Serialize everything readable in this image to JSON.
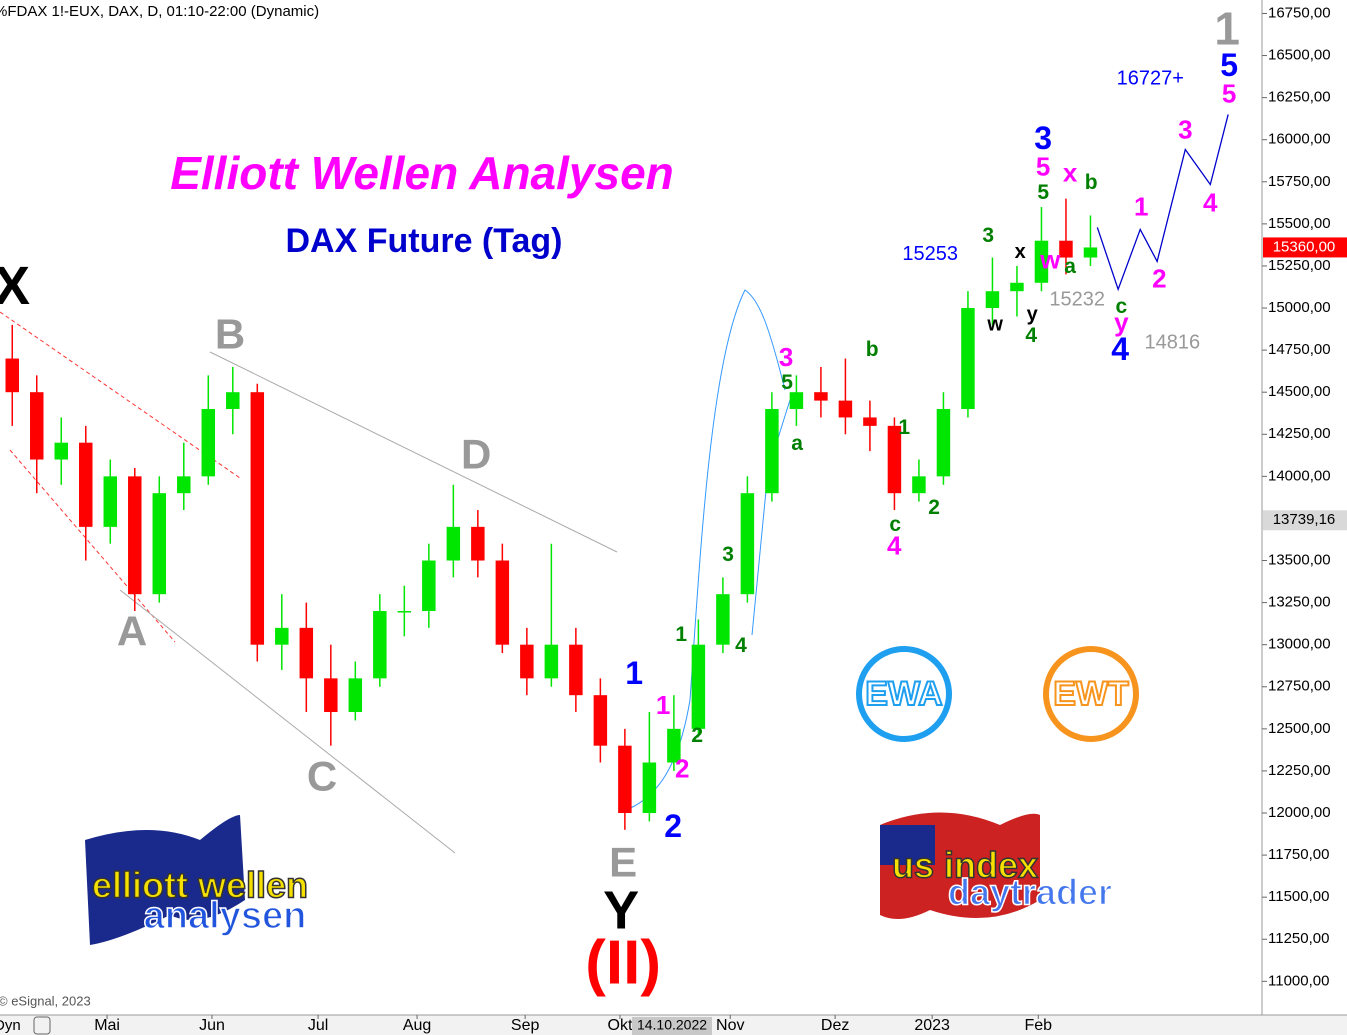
{
  "header": "%FDAX 1!-EUX, DAX, D, 01:10-22:00 (Dynamic)",
  "copyright": "© eSignal, 2023",
  "footer_left": "Dyn",
  "date_box": "14.10.2022",
  "logos": {
    "ewa": "EWA",
    "ewt": "EWT",
    "ew_line1": "elliott wellen",
    "ew_line2": "analysen",
    "us_line1": "us index",
    "us_line2": "daytrader"
  },
  "chart_data": {
    "type": "candlestick",
    "title": "Elliott Wellen Analysen",
    "subtitle": "DAX Future (Tag)",
    "up_color": "#00e600",
    "down_color": "#ff0000",
    "open": [
      14700,
      14500,
      14100,
      14200,
      13700,
      14000,
      13300,
      13900,
      14000,
      14400,
      14500,
      13000,
      13100,
      12800,
      12600,
      12800,
      13200,
      13200,
      13500,
      13700,
      13500,
      13000,
      12800,
      13000,
      12700,
      12400,
      12000,
      12300,
      12500,
      13000,
      13300,
      13900,
      14400,
      14500,
      14450,
      14350,
      14300,
      13900,
      14000,
      14400,
      15000,
      15100,
      15150,
      15400,
      15300
    ],
    "high": [
      14900,
      14600,
      14350,
      14300,
      14100,
      14050,
      14000,
      14200,
      14600,
      14650,
      14550,
      13300,
      13250,
      13000,
      12900,
      13300,
      13350,
      13600,
      13950,
      13800,
      13600,
      13100,
      13600,
      13100,
      12800,
      12500,
      12600,
      12700,
      13150,
      13400,
      14000,
      14500,
      14600,
      14650,
      14700,
      14450,
      14350,
      14100,
      14500,
      15100,
      15300,
      15250,
      15600,
      15650,
      15550
    ],
    "low": [
      14300,
      13900,
      13950,
      13500,
      13600,
      13200,
      13250,
      13800,
      13950,
      14250,
      12900,
      12850,
      12600,
      12400,
      12550,
      12750,
      13050,
      13100,
      13400,
      13400,
      12950,
      12700,
      12750,
      12600,
      12300,
      11900,
      11950,
      12250,
      12450,
      12950,
      13250,
      13850,
      14300,
      14350,
      14250,
      14150,
      13800,
      13850,
      13950,
      14350,
      14900,
      14950,
      15100,
      15200,
      15250
    ],
    "close": [
      14500,
      14100,
      14200,
      13700,
      14000,
      13300,
      13900,
      14000,
      14400,
      14500,
      13000,
      13100,
      12800,
      12600,
      12800,
      13200,
      13200,
      13500,
      13700,
      13500,
      13000,
      12800,
      13000,
      12700,
      12400,
      12000,
      12300,
      12500,
      13000,
      13300,
      13900,
      14400,
      14500,
      14450,
      14350,
      14300,
      13900,
      14000,
      14400,
      15000,
      15100,
      15150,
      15400,
      15300,
      15360
    ],
    "xlim": [
      0,
      51.5
    ],
    "ylim": [
      10800,
      16830
    ],
    "xticks": [
      {
        "value": 4.37,
        "label": "Mai"
      },
      {
        "value": 8.65,
        "label": "Jun"
      },
      {
        "value": 12.98,
        "label": "Jul"
      },
      {
        "value": 17.02,
        "label": "Aug"
      },
      {
        "value": 21.43,
        "label": "Sep"
      },
      {
        "value": 25.3,
        "label": "Okt"
      },
      {
        "value": 29.8,
        "label": "Nov"
      },
      {
        "value": 34.08,
        "label": "Dez"
      },
      {
        "value": 38.04,
        "label": "2023"
      },
      {
        "value": 42.37,
        "label": "Feb"
      }
    ],
    "yticks": [
      {
        "value": 16750,
        "label": "16750,00"
      },
      {
        "value": 16500,
        "label": "16500,00"
      },
      {
        "value": 16250,
        "label": "16250,00"
      },
      {
        "value": 16000,
        "label": "16000,00"
      },
      {
        "value": 15750,
        "label": "15750,00"
      },
      {
        "value": 15500,
        "label": "15500,00"
      },
      {
        "value": 15250,
        "label": "15250,00"
      },
      {
        "value": 15000,
        "label": "15000,00"
      },
      {
        "value": 14750,
        "label": "14750,00"
      },
      {
        "value": 14500,
        "label": "14500,00"
      },
      {
        "value": 14250,
        "label": "14250,00"
      },
      {
        "value": 14000,
        "label": "14000,00"
      },
      {
        "value": 13500,
        "label": "13500,00"
      },
      {
        "value": 13250,
        "label": "13250,00"
      },
      {
        "value": 13000,
        "label": "13000,00"
      },
      {
        "value": 12750,
        "label": "12750,00"
      },
      {
        "value": 12500,
        "label": "12500,00"
      },
      {
        "value": 12250,
        "label": "12250,00"
      },
      {
        "value": 12000,
        "label": "12000,00"
      },
      {
        "value": 11750,
        "label": "11750,00"
      },
      {
        "value": 11500,
        "label": "11500,00"
      },
      {
        "value": 11250,
        "label": "11250,00"
      },
      {
        "value": 11000,
        "label": "11000,00"
      }
    ],
    "last_price": {
      "value": 15360,
      "label": "15360,00",
      "color": "#ff0000"
    },
    "marker_price": {
      "value": 13739.16,
      "label": "13739,16",
      "color": "#d9d9d9"
    },
    "projection": {
      "x": [
        44.78,
        45.63,
        46.53,
        47.22,
        48.37,
        49.39,
        50.12
      ],
      "y": [
        15479,
        15111,
        15467,
        15277,
        15942,
        15734,
        16150
      ],
      "color": "#0000cc"
    },
    "annotations": [
      {
        "text": "X",
        "x": 0.49,
        "y": 15110,
        "color": "#000000"
      },
      {
        "text": "B",
        "x": 9.39,
        "y": 14825,
        "color": "#999999"
      },
      {
        "text": "A",
        "x": 5.39,
        "y": 13061,
        "color": "#999999"
      },
      {
        "text": "C",
        "x": 13.14,
        "y": 12200,
        "color": "#999999"
      },
      {
        "text": "D",
        "x": 19.43,
        "y": 14113,
        "color": "#999999"
      },
      {
        "text": "E",
        "x": 25.43,
        "y": 11689,
        "color": "#999999"
      },
      {
        "text": "Y",
        "x": 25.35,
        "y": 11398,
        "color": "#000000"
      },
      {
        "text": "(II)",
        "x": 25.43,
        "y": 11083,
        "color": "#ff0000"
      },
      {
        "text": "1",
        "x": 25.88,
        "y": 12818,
        "color": "#0000ff"
      },
      {
        "text": "1",
        "x": 27.06,
        "y": 12628,
        "color": "#ff00ff"
      },
      {
        "text": "2",
        "x": 27.84,
        "y": 12253,
        "color": "#ff00ff"
      },
      {
        "text": "2",
        "x": 27.47,
        "y": 11909,
        "color": "#0000ff"
      },
      {
        "text": "1",
        "x": 27.8,
        "y": 13055,
        "color": "#008000"
      },
      {
        "text": "2",
        "x": 28.45,
        "y": 12455,
        "color": "#008000"
      },
      {
        "text": "3",
        "x": 29.71,
        "y": 13530,
        "color": "#008000"
      },
      {
        "text": "4",
        "x": 30.24,
        "y": 12990,
        "color": "#008000"
      },
      {
        "text": "3",
        "x": 32.08,
        "y": 14695,
        "color": "#ff00ff"
      },
      {
        "text": "5",
        "x": 32.12,
        "y": 14552,
        "color": "#008000"
      },
      {
        "text": "a",
        "x": 32.53,
        "y": 14190,
        "color": "#008000"
      },
      {
        "text": "b",
        "x": 35.59,
        "y": 14748,
        "color": "#008000"
      },
      {
        "text": "c",
        "x": 36.53,
        "y": 13709,
        "color": "#008000"
      },
      {
        "text": "4",
        "x": 36.49,
        "y": 13578,
        "color": "#ff00ff"
      },
      {
        "text": "1",
        "x": 36.9,
        "y": 14285,
        "color": "#008000"
      },
      {
        "text": "2",
        "x": 38.12,
        "y": 13810,
        "color": "#008000"
      },
      {
        "text": "15253",
        "x": 37.96,
        "y": 15318,
        "color": "#0000ff"
      },
      {
        "text": "3",
        "x": 40.33,
        "y": 15425,
        "color": "#008000"
      },
      {
        "text": "w",
        "x": 40.61,
        "y": 14897,
        "color": "#000000"
      },
      {
        "text": "x",
        "x": 41.63,
        "y": 15330,
        "color": "#000000"
      },
      {
        "text": "y",
        "x": 42.12,
        "y": 14956,
        "color": "#000000"
      },
      {
        "text": "4",
        "x": 42.08,
        "y": 14831,
        "color": "#008000"
      },
      {
        "text": "3",
        "x": 42.57,
        "y": 15996,
        "color": "#0000ff"
      },
      {
        "text": "5",
        "x": 42.57,
        "y": 15829,
        "color": "#ff00ff"
      },
      {
        "text": "5",
        "x": 42.57,
        "y": 15681,
        "color": "#008000"
      },
      {
        "text": "w",
        "x": 42.86,
        "y": 15277,
        "color": "#ff00ff"
      },
      {
        "text": "a",
        "x": 43.67,
        "y": 15241,
        "color": "#008000"
      },
      {
        "text": "x",
        "x": 43.67,
        "y": 15794,
        "color": "#ff00ff"
      },
      {
        "text": "b",
        "x": 44.53,
        "y": 15740,
        "color": "#008000"
      },
      {
        "text": "15232",
        "x": 43.96,
        "y": 15045,
        "color": "#999999"
      },
      {
        "text": "c",
        "x": 45.76,
        "y": 15004,
        "color": "#008000"
      },
      {
        "text": "y",
        "x": 45.76,
        "y": 14903,
        "color": "#ff00ff"
      },
      {
        "text": "4",
        "x": 45.71,
        "y": 14742,
        "color": "#0000ff"
      },
      {
        "text": "14816",
        "x": 47.84,
        "y": 14790,
        "color": "#999999"
      },
      {
        "text": "1",
        "x": 46.57,
        "y": 15592,
        "color": "#ff00ff"
      },
      {
        "text": "2",
        "x": 47.31,
        "y": 15164,
        "color": "#ff00ff"
      },
      {
        "text": "3",
        "x": 48.37,
        "y": 16049,
        "color": "#ff00ff"
      },
      {
        "text": "4",
        "x": 49.39,
        "y": 15615,
        "color": "#ff00ff"
      },
      {
        "text": "16727+",
        "x": 46.94,
        "y": 16358,
        "color": "#0000ff"
      },
      {
        "text": "1",
        "x": 50.08,
        "y": 16637,
        "color": "#999999"
      },
      {
        "text": "5",
        "x": 50.16,
        "y": 16429,
        "color": "#0000ff"
      },
      {
        "text": "5",
        "x": 50.16,
        "y": 16263,
        "color": "#ff00ff"
      }
    ]
  }
}
